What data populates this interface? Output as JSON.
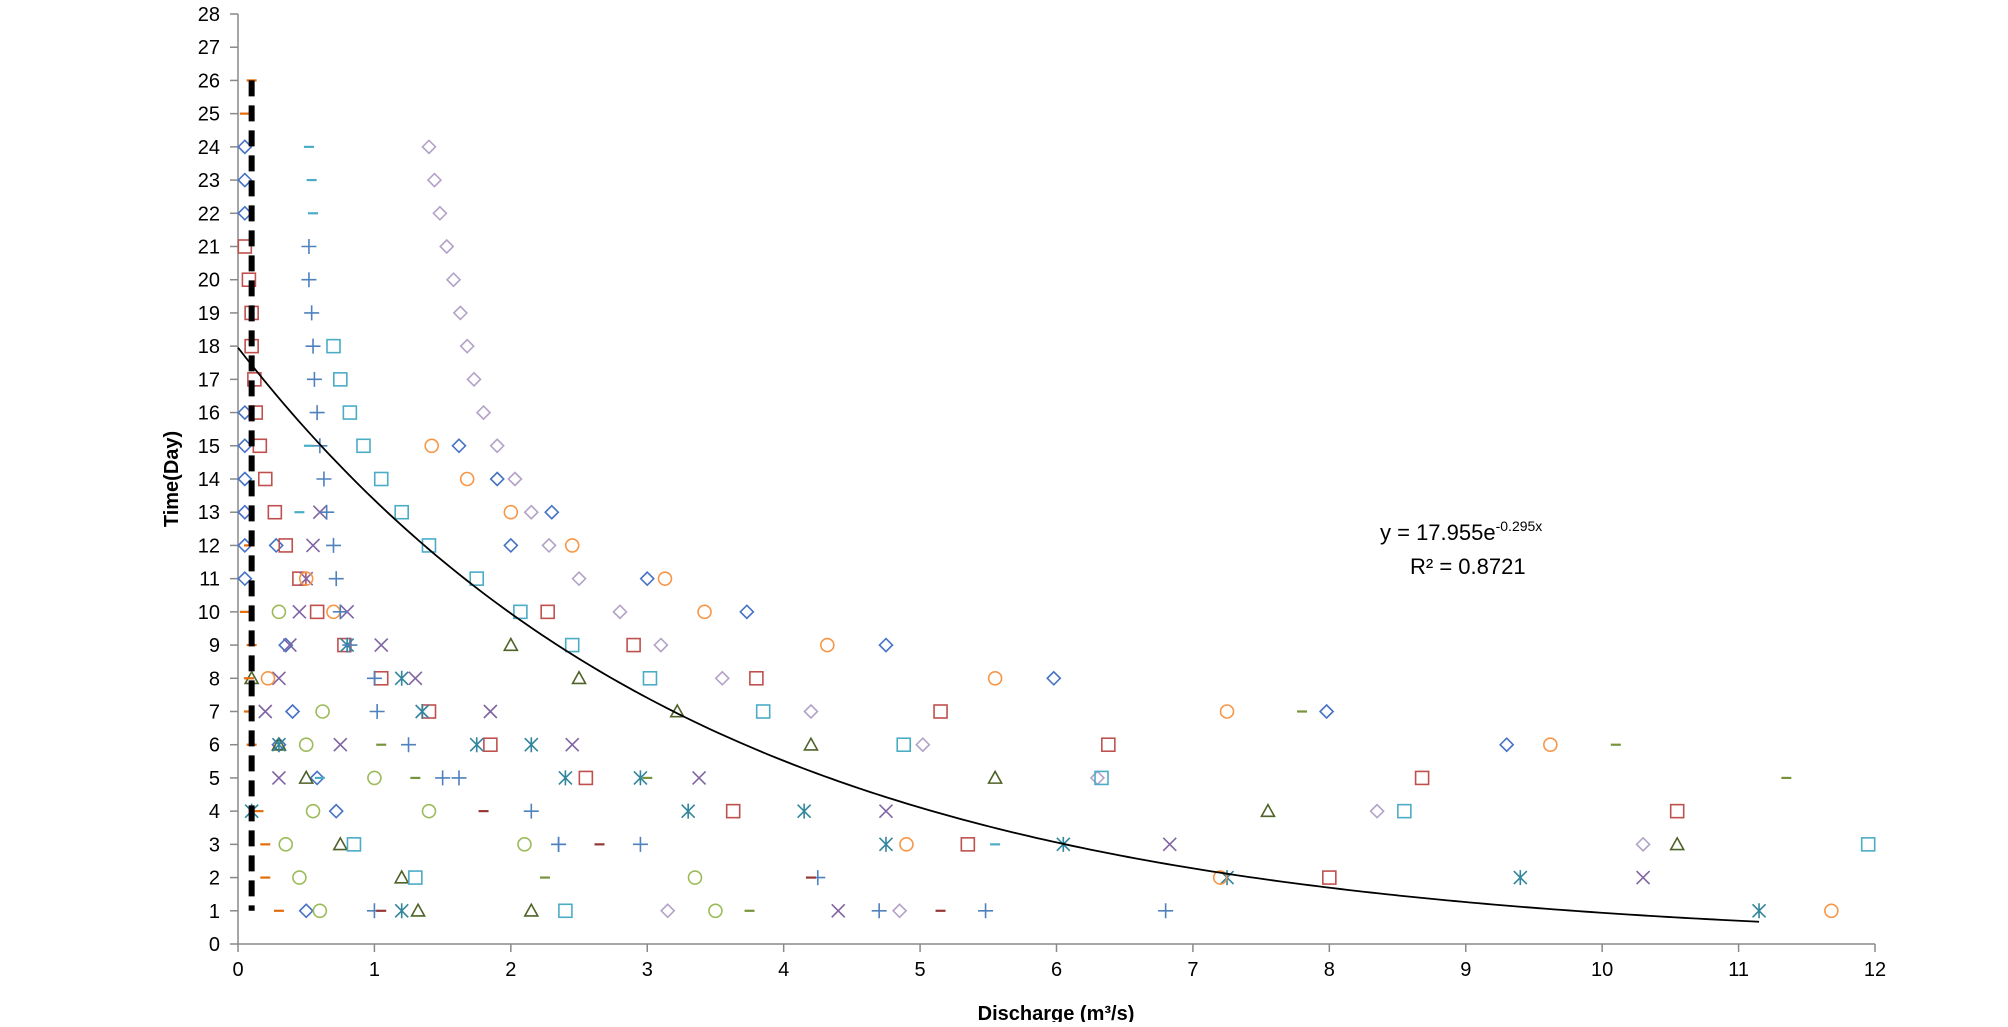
{
  "chart_data": {
    "type": "scatter",
    "title": "",
    "xlabel": "Discharge (m³/s)",
    "ylabel": "Time(Day)",
    "xlim": [
      0,
      12
    ],
    "ylim": [
      0,
      28
    ],
    "x_ticks": [
      "0",
      "1",
      "2",
      "3",
      "4",
      "5",
      "6",
      "7",
      "8",
      "9",
      "10",
      "11",
      "12"
    ],
    "y_ticks": [
      "0",
      "1",
      "2",
      "3",
      "4",
      "5",
      "6",
      "7",
      "8",
      "9",
      "10",
      "11",
      "12",
      "13",
      "14",
      "15",
      "16",
      "17",
      "18",
      "19",
      "20",
      "21",
      "22",
      "23",
      "24",
      "25",
      "26",
      "27",
      "28"
    ],
    "grid": false,
    "legend": "none",
    "series": [
      {
        "marker": "diamond",
        "color": "#4472c4",
        "points": [
          [
            0.05,
            24
          ],
          [
            0.05,
            23
          ],
          [
            0.05,
            22
          ],
          [
            0.05,
            16
          ],
          [
            0.05,
            15
          ],
          [
            0.05,
            14
          ],
          [
            0.05,
            13
          ],
          [
            0.05,
            12
          ],
          [
            0.05,
            11
          ],
          [
            1.62,
            15
          ],
          [
            1.9,
            14
          ],
          [
            2.3,
            13
          ],
          [
            2.0,
            12
          ],
          [
            3.0,
            11
          ],
          [
            3.73,
            10
          ],
          [
            4.75,
            9
          ],
          [
            5.98,
            8
          ],
          [
            7.98,
            7
          ],
          [
            9.3,
            6
          ],
          [
            0.58,
            5
          ],
          [
            0.72,
            4
          ],
          [
            0.5,
            1
          ],
          [
            0.3,
            6
          ],
          [
            0.4,
            7
          ],
          [
            0.35,
            9
          ],
          [
            0.28,
            12
          ]
        ]
      },
      {
        "marker": "square",
        "color": "#c0504d",
        "points": [
          [
            0.05,
            21
          ],
          [
            0.08,
            20
          ],
          [
            0.1,
            19
          ],
          [
            0.1,
            18
          ],
          [
            0.12,
            17
          ],
          [
            0.13,
            16
          ],
          [
            0.16,
            15
          ],
          [
            0.2,
            14
          ],
          [
            0.27,
            13
          ],
          [
            0.35,
            12
          ],
          [
            0.45,
            11
          ],
          [
            0.58,
            10
          ],
          [
            0.78,
            9
          ],
          [
            1.05,
            8
          ],
          [
            1.4,
            7
          ],
          [
            1.85,
            6
          ],
          [
            2.55,
            5
          ],
          [
            3.63,
            4
          ],
          [
            5.35,
            3
          ],
          [
            8.0,
            2
          ],
          [
            2.27,
            10
          ],
          [
            2.9,
            9
          ],
          [
            3.8,
            8
          ],
          [
            5.15,
            7
          ],
          [
            6.38,
            6
          ],
          [
            8.68,
            5
          ],
          [
            10.55,
            4
          ]
        ]
      },
      {
        "marker": "triangle",
        "color": "#4f6228",
        "points": [
          [
            0.1,
            8
          ],
          [
            0.3,
            6
          ],
          [
            0.5,
            5
          ],
          [
            0.75,
            3
          ],
          [
            1.2,
            2
          ],
          [
            1.32,
            1
          ],
          [
            2.0,
            9
          ],
          [
            2.5,
            8
          ],
          [
            3.22,
            7
          ],
          [
            4.2,
            6
          ],
          [
            5.55,
            5
          ],
          [
            7.55,
            4
          ],
          [
            10.55,
            3
          ],
          [
            2.15,
            1
          ]
        ]
      },
      {
        "marker": "x",
        "color": "#8064a2",
        "points": [
          [
            0.2,
            7
          ],
          [
            0.3,
            8
          ],
          [
            0.38,
            9
          ],
          [
            0.45,
            10
          ],
          [
            0.5,
            11
          ],
          [
            0.55,
            12
          ],
          [
            0.6,
            13
          ],
          [
            0.8,
            10
          ],
          [
            1.05,
            9
          ],
          [
            1.3,
            8
          ],
          [
            1.85,
            7
          ],
          [
            2.45,
            6
          ],
          [
            3.38,
            5
          ],
          [
            4.75,
            4
          ],
          [
            6.83,
            3
          ],
          [
            10.3,
            2
          ],
          [
            0.75,
            6
          ],
          [
            0.3,
            5
          ],
          [
            4.4,
            1
          ]
        ]
      },
      {
        "marker": "asterisk",
        "color": "#31859c",
        "points": [
          [
            0.1,
            4
          ],
          [
            0.3,
            6
          ],
          [
            0.8,
            9
          ],
          [
            1.2,
            8
          ],
          [
            1.35,
            7
          ],
          [
            1.75,
            6
          ],
          [
            2.15,
            6
          ],
          [
            2.4,
            5
          ],
          [
            2.95,
            5
          ],
          [
            3.3,
            4
          ],
          [
            4.15,
            4
          ],
          [
            4.75,
            3
          ],
          [
            6.05,
            3
          ],
          [
            7.25,
            2
          ],
          [
            9.4,
            2
          ],
          [
            11.15,
            1
          ],
          [
            1.2,
            1
          ]
        ]
      },
      {
        "marker": "circle",
        "color": "#f79646",
        "points": [
          [
            1.42,
            15
          ],
          [
            1.68,
            14
          ],
          [
            2.0,
            13
          ],
          [
            2.45,
            12
          ],
          [
            3.13,
            11
          ],
          [
            3.42,
            10
          ],
          [
            4.32,
            9
          ],
          [
            5.55,
            8
          ],
          [
            7.25,
            7
          ],
          [
            9.62,
            6
          ],
          [
            4.9,
            3
          ],
          [
            7.2,
            2
          ],
          [
            11.68,
            1
          ],
          [
            0.7,
            10
          ],
          [
            0.5,
            11
          ],
          [
            0.22,
            8
          ]
        ]
      },
      {
        "marker": "circle",
        "color": "#9bbb59",
        "points": [
          [
            0.6,
            1
          ],
          [
            0.45,
            2
          ],
          [
            0.35,
            3
          ],
          [
            0.55,
            4
          ],
          [
            1.0,
            5
          ],
          [
            0.5,
            6
          ],
          [
            0.62,
            7
          ],
          [
            1.4,
            4
          ],
          [
            2.1,
            3
          ],
          [
            3.35,
            2
          ],
          [
            3.5,
            1
          ],
          [
            0.3,
            10
          ]
        ]
      },
      {
        "marker": "diamond",
        "color": "#b3a2c7",
        "points": [
          [
            1.4,
            24
          ],
          [
            1.44,
            23
          ],
          [
            1.48,
            22
          ],
          [
            1.53,
            21
          ],
          [
            1.58,
            20
          ],
          [
            1.63,
            19
          ],
          [
            1.68,
            18
          ],
          [
            1.73,
            17
          ],
          [
            1.8,
            16
          ],
          [
            1.9,
            15
          ],
          [
            2.03,
            14
          ],
          [
            2.15,
            13
          ],
          [
            2.28,
            12
          ],
          [
            2.5,
            11
          ],
          [
            2.8,
            10
          ],
          [
            3.1,
            9
          ],
          [
            3.55,
            8
          ],
          [
            4.2,
            7
          ],
          [
            5.02,
            6
          ],
          [
            6.3,
            5
          ],
          [
            8.35,
            4
          ],
          [
            10.3,
            3
          ],
          [
            3.15,
            1
          ],
          [
            4.85,
            1
          ]
        ]
      },
      {
        "marker": "square",
        "color": "#4bacc6",
        "points": [
          [
            0.7,
            18
          ],
          [
            0.75,
            17
          ],
          [
            0.82,
            16
          ],
          [
            0.92,
            15
          ],
          [
            1.05,
            14
          ],
          [
            1.2,
            13
          ],
          [
            1.4,
            12
          ],
          [
            1.75,
            11
          ],
          [
            2.07,
            10
          ],
          [
            2.45,
            9
          ],
          [
            3.02,
            8
          ],
          [
            3.85,
            7
          ],
          [
            4.88,
            6
          ],
          [
            6.33,
            5
          ],
          [
            8.55,
            4
          ],
          [
            11.95,
            3
          ],
          [
            0.85,
            3
          ],
          [
            1.3,
            2
          ],
          [
            2.4,
            1
          ]
        ]
      },
      {
        "marker": "plus",
        "color": "#4f81bd",
        "points": [
          [
            0.52,
            21
          ],
          [
            0.52,
            20
          ],
          [
            0.54,
            19
          ],
          [
            0.55,
            18
          ],
          [
            0.56,
            17
          ],
          [
            0.58,
            16
          ],
          [
            0.6,
            15
          ],
          [
            0.63,
            14
          ],
          [
            0.65,
            13
          ],
          [
            0.7,
            12
          ],
          [
            0.72,
            11
          ],
          [
            0.75,
            10
          ],
          [
            0.82,
            9
          ],
          [
            1.0,
            8
          ],
          [
            1.02,
            7
          ],
          [
            1.25,
            6
          ],
          [
            1.62,
            5
          ],
          [
            2.15,
            4
          ],
          [
            2.95,
            3
          ],
          [
            4.25,
            2
          ],
          [
            6.8,
            1
          ],
          [
            5.48,
            1
          ],
          [
            1.0,
            1
          ],
          [
            1.5,
            5
          ],
          [
            4.7,
            1
          ],
          [
            2.35,
            3
          ],
          [
            2.35,
            3
          ]
        ]
      },
      {
        "marker": "dash",
        "color": "#4bacc6",
        "points": [
          [
            0.52,
            24
          ],
          [
            0.54,
            23
          ],
          [
            0.55,
            22
          ],
          [
            0.52,
            15
          ],
          [
            0.45,
            13
          ],
          [
            0.6,
            5
          ],
          [
            5.55,
            3
          ]
        ]
      },
      {
        "marker": "dash",
        "color": "#77933c",
        "points": [
          [
            7.8,
            7
          ],
          [
            10.1,
            6
          ],
          [
            11.35,
            5
          ],
          [
            1.05,
            6
          ],
          [
            1.3,
            5
          ],
          [
            2.25,
            2
          ],
          [
            3.75,
            1
          ],
          [
            3.0,
            5
          ]
        ]
      },
      {
        "marker": "dash",
        "color": "#e46c0a",
        "points": [
          [
            0.1,
            26
          ],
          [
            0.05,
            25
          ],
          [
            0.08,
            12
          ],
          [
            0.05,
            10
          ],
          [
            0.08,
            7
          ],
          [
            0.1,
            6
          ],
          [
            0.15,
            4
          ],
          [
            0.2,
            3
          ],
          [
            0.2,
            2
          ],
          [
            0.3,
            1
          ],
          [
            0.1,
            9
          ],
          [
            0.08,
            8
          ]
        ]
      },
      {
        "marker": "dash",
        "color": "#953735",
        "points": [
          [
            1.8,
            4
          ],
          [
            2.65,
            3
          ],
          [
            4.2,
            2
          ],
          [
            5.15,
            1
          ],
          [
            1.05,
            1
          ]
        ]
      }
    ],
    "annotations": {
      "equation_prefix": "y = 17.955e",
      "equation_exponent": "-0.295x",
      "r2": "R² = 0.8721"
    },
    "trendline": {
      "type": "exponential",
      "a": 17.955,
      "b": -0.295,
      "x_range": [
        0,
        11.15
      ]
    },
    "reference_line": {
      "x": 0.1,
      "y_range": [
        1,
        26
      ],
      "style": "dashed"
    }
  }
}
